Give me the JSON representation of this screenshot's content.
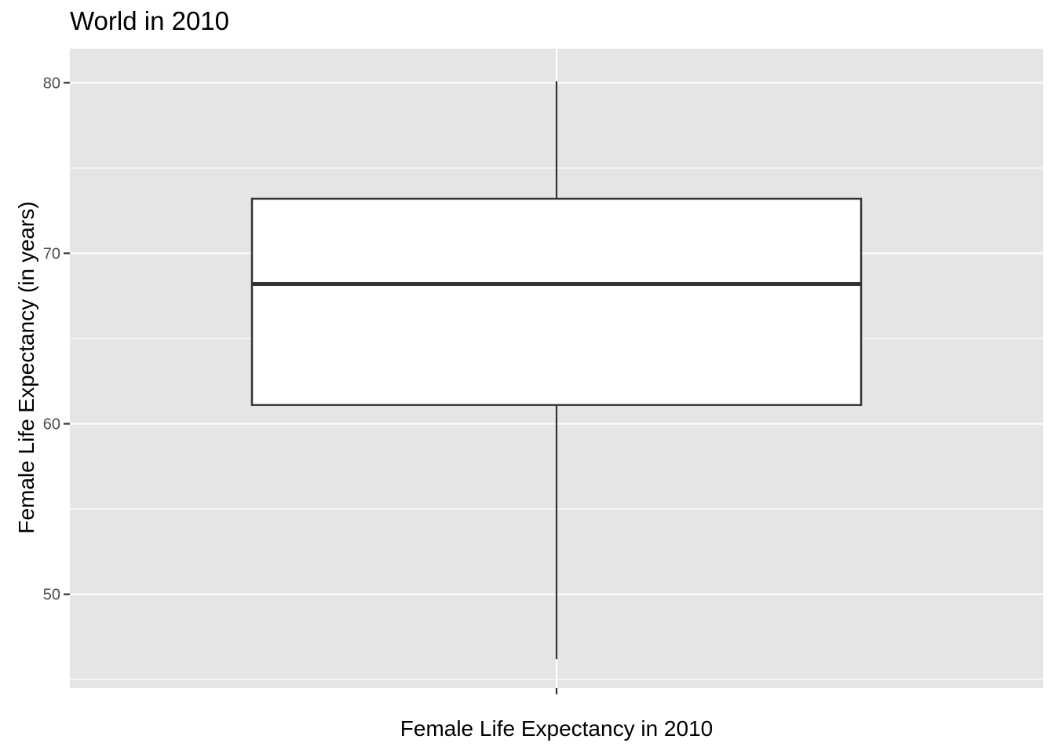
{
  "chart_data": {
    "type": "boxplot",
    "title": "World in 2010",
    "xlabel": "Female Life Expectancy in 2010",
    "ylabel": "Female Life Expectancy (in years)",
    "ylim": [
      44.5,
      82
    ],
    "yticks": [
      50,
      60,
      70,
      80
    ],
    "y_minor": [
      45,
      55,
      65,
      75
    ],
    "grid": true,
    "box": {
      "whisker_low": 46.2,
      "q1": 61.1,
      "median": 68.2,
      "q3": 73.2,
      "whisker_high": 80.1
    },
    "colors": {
      "panel": "#e5e5e5",
      "grid": "#ffffff",
      "box_fill": "#ffffff",
      "box_stroke": "#333333",
      "tick_text": "#4d4d4d"
    }
  }
}
